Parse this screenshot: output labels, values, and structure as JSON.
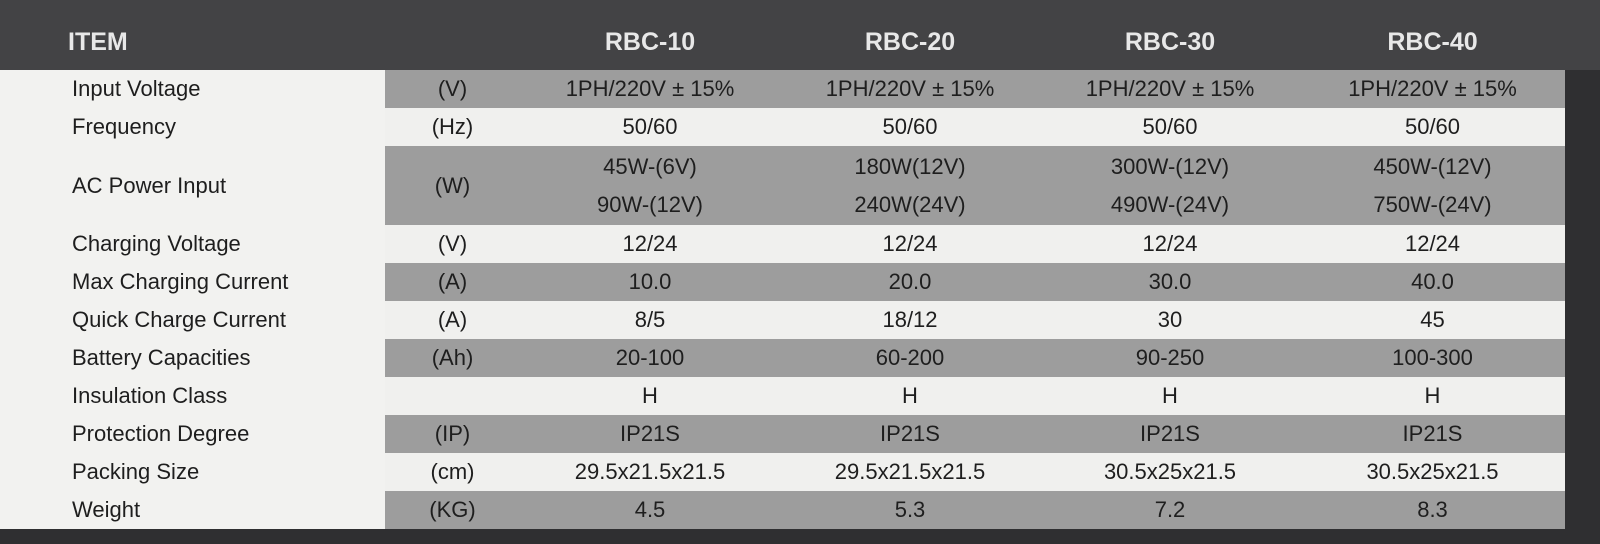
{
  "table": {
    "header": [
      "ITEM",
      "RBC-10",
      "RBC-20",
      "RBC-30",
      "RBC-40"
    ],
    "rows": [
      {
        "item": "Input Voltage",
        "unit": "(V)",
        "values": [
          "1PH/220V ± 15%",
          "1PH/220V ± 15%",
          "1PH/220V ± 15%",
          "1PH/220V ± 15%"
        ]
      },
      {
        "item": "Frequency",
        "unit": "(Hz)",
        "values": [
          "50/60",
          "50/60",
          "50/60",
          "50/60"
        ]
      },
      {
        "item": "AC Power Input",
        "unit": "(W)",
        "values": [
          [
            "45W-(6V)",
            "90W-(12V)"
          ],
          [
            "180W(12V)",
            "240W(24V)"
          ],
          [
            "300W-(12V)",
            "490W-(24V)"
          ],
          [
            "450W-(12V)",
            "750W-(24V)"
          ]
        ]
      },
      {
        "item": "Charging Voltage",
        "unit": "(V)",
        "values": [
          "12/24",
          "12/24",
          "12/24",
          "12/24"
        ]
      },
      {
        "item": "Max Charging Current",
        "unit": "(A)",
        "values": [
          "10.0",
          "20.0",
          "30.0",
          "40.0"
        ]
      },
      {
        "item": "Quick Charge Current",
        "unit": "(A)",
        "values": [
          "8/5",
          "18/12",
          "30",
          "45"
        ]
      },
      {
        "item": "Battery Capacities",
        "unit": "(Ah)",
        "values": [
          "20-100",
          "60-200",
          "90-250",
          "100-300"
        ]
      },
      {
        "item": "Insulation Class",
        "unit": null,
        "values": [
          "H",
          "H",
          "H",
          "H"
        ]
      },
      {
        "item": "Protection Degree",
        "unit": "(IP)",
        "values": [
          "IP21S",
          "IP21S",
          "IP21S",
          "IP21S"
        ]
      },
      {
        "item": "Packing Size",
        "unit": "(cm)",
        "values": [
          "29.5x21.5x21.5",
          "29.5x21.5x21.5",
          "30.5x25x21.5",
          "30.5x25x21.5"
        ]
      },
      {
        "item": "Weight",
        "unit": "(KG)",
        "values": [
          "4.5",
          "5.3",
          "7.2",
          "8.3"
        ]
      }
    ]
  }
}
